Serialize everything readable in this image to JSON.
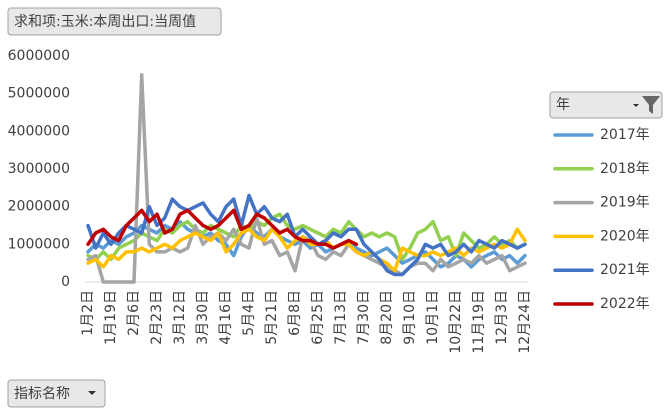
{
  "chart_data": {
    "type": "line",
    "title": "求和项:玉米:本周出口:当周值",
    "legend_title": "年",
    "field_button": "指标名称",
    "categories": [
      "1月2日",
      null,
      null,
      "1月19日",
      null,
      null,
      "2月6日",
      null,
      null,
      "2月23日",
      null,
      null,
      "3月12日",
      null,
      null,
      "3月30日",
      null,
      null,
      "4月16日",
      null,
      null,
      "5月4日",
      null,
      null,
      "5月21日",
      null,
      null,
      "6月8日",
      null,
      null,
      "6月25日",
      null,
      null,
      "7月13日",
      null,
      null,
      "7月30日",
      null,
      null,
      "8月20日",
      null,
      null,
      "9月10日",
      null,
      null,
      "10月1日",
      null,
      null,
      "10月22日",
      null,
      null,
      "11月19日",
      null,
      null,
      "12月3日",
      null,
      null,
      "12月24日"
    ],
    "series": [
      {
        "name": "2017年",
        "color": "#5b9bd5",
        "values": [
          800000,
          1000000,
          900000,
          1100000,
          1000000,
          1200000,
          1300000,
          1500000,
          1400000,
          1300000,
          1500000,
          1400000,
          1600000,
          1400000,
          1300000,
          1200000,
          1300000,
          1100000,
          1000000,
          700000,
          1200000,
          1500000,
          1300000,
          1200000,
          1400000,
          1200000,
          1100000,
          1000000,
          1100000,
          900000,
          1000000,
          800000,
          900000,
          1000000,
          1100000,
          900000,
          800000,
          700000,
          800000,
          900000,
          700000,
          500000,
          600000,
          700000,
          800000,
          600000,
          400000,
          500000,
          700000,
          600000,
          400000,
          600000,
          700000,
          800000,
          600000,
          700000,
          500000,
          700000
        ]
      },
      {
        "name": "2018年",
        "color": "#92d050",
        "values": [
          700000,
          600000,
          800000,
          600000,
          900000,
          1000000,
          1100000,
          1300000,
          1200000,
          1100000,
          1400000,
          1300000,
          1500000,
          1600000,
          1400000,
          1300000,
          1500000,
          1400000,
          1300000,
          1200000,
          1500000,
          1400000,
          1600000,
          1500000,
          1700000,
          1800000,
          1500000,
          1400000,
          1500000,
          1400000,
          1300000,
          1200000,
          1400000,
          1300000,
          1600000,
          1400000,
          1200000,
          1300000,
          1200000,
          1300000,
          1200000,
          600000,
          900000,
          1300000,
          1400000,
          1600000,
          1100000,
          1200000,
          700000,
          1300000,
          1100000,
          900000,
          1000000,
          1200000,
          1000000,
          1100000,
          900000,
          1000000
        ]
      },
      {
        "name": "2019年",
        "color": "#a5a5a5",
        "values": [
          600000,
          700000,
          0,
          0,
          0,
          0,
          0,
          5500000,
          1000000,
          800000,
          800000,
          900000,
          800000,
          900000,
          1500000,
          1000000,
          1200000,
          1300000,
          1100000,
          1400000,
          1000000,
          900000,
          1700000,
          1000000,
          1100000,
          700000,
          800000,
          300000,
          1200000,
          1100000,
          700000,
          600000,
          800000,
          700000,
          1000000,
          800000,
          700000,
          600000,
          500000,
          400000,
          300000,
          200000,
          400000,
          500000,
          500000,
          300000,
          600000,
          400000,
          500000,
          600000,
          500000,
          700000,
          500000,
          600000,
          700000,
          300000,
          400000,
          500000
        ]
      },
      {
        "name": "2020年",
        "color": "#ffc000",
        "values": [
          500000,
          600000,
          400000,
          700000,
          600000,
          800000,
          800000,
          900000,
          800000,
          900000,
          1000000,
          900000,
          1100000,
          1200000,
          1300000,
          1200000,
          1100000,
          1300000,
          800000,
          1000000,
          1300000,
          1400000,
          1200000,
          1100000,
          1400000,
          1200000,
          900000,
          1100000,
          1200000,
          1000000,
          1000000,
          1100000,
          900000,
          1000000,
          1000000,
          800000,
          700000,
          800000,
          600000,
          500000,
          300000,
          900000,
          800000,
          700000,
          700000,
          800000,
          700000,
          800000,
          900000,
          700000,
          900000,
          800000,
          900000,
          1000000,
          900000,
          1000000,
          1400000,
          1100000
        ]
      },
      {
        "name": "2021年",
        "color": "#4472c4",
        "values": [
          1500000,
          900000,
          1300000,
          1000000,
          1300000,
          1500000,
          1400000,
          1300000,
          2000000,
          1500000,
          1700000,
          2200000,
          2000000,
          1900000,
          2000000,
          2100000,
          1800000,
          1600000,
          2000000,
          2200000,
          1500000,
          2300000,
          1800000,
          2000000,
          1700000,
          1600000,
          1800000,
          1200000,
          1400000,
          1200000,
          1000000,
          1100000,
          1300000,
          1200000,
          1400000,
          1400000,
          1000000,
          800000,
          600000,
          300000,
          200000,
          200000,
          400000,
          600000,
          1000000,
          900000,
          1000000,
          700000,
          800000,
          1000000,
          800000,
          1100000,
          1000000,
          900000,
          1100000,
          1000000,
          900000,
          1000000
        ]
      },
      {
        "name": "2022年",
        "color": "#c00000",
        "values": [
          1000000,
          1300000,
          1400000,
          1200000,
          1100000,
          1500000,
          1700000,
          1900000,
          1600000,
          1800000,
          1300000,
          1400000,
          1800000,
          1900000,
          1700000,
          1500000,
          1400000,
          1500000,
          1700000,
          1900000,
          1400000,
          1500000,
          1800000,
          1700000,
          1500000,
          1300000,
          1400000,
          1200000,
          1100000,
          1100000,
          1000000,
          1000000,
          900000,
          1000000,
          1100000,
          1000000,
          null,
          null,
          null,
          null,
          null,
          null,
          null,
          null,
          null,
          null,
          null,
          null,
          null,
          null,
          null,
          null,
          null,
          null,
          null,
          null,
          null,
          null
        ]
      }
    ],
    "ylim": [
      0,
      6000000
    ],
    "yticks": [
      0,
      1000000,
      2000000,
      3000000,
      4000000,
      5000000,
      6000000
    ],
    "grid": false,
    "legend": "right"
  }
}
